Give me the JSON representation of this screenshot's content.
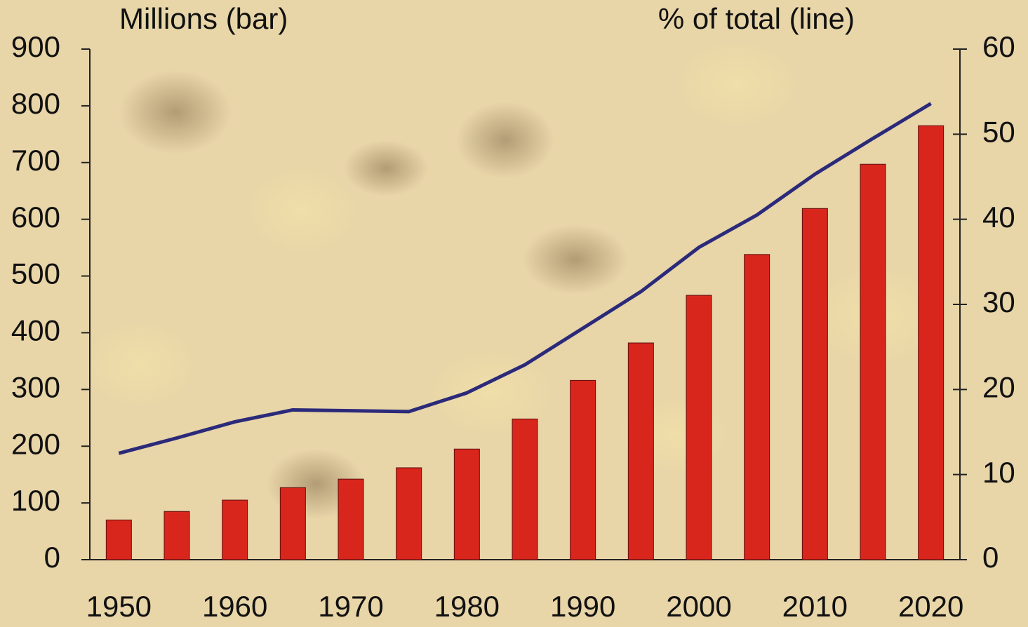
{
  "chart_data": {
    "type": "bar_line",
    "y_label": "Millions (bar)",
    "y2_label": "% of total (line)",
    "x": [
      1950,
      1955,
      1960,
      1965,
      1970,
      1975,
      1980,
      1985,
      1990,
      1995,
      2000,
      2005,
      2010,
      2015,
      2020
    ],
    "xlim": [
      1947.5,
      2022.5
    ],
    "xticks": [
      1950,
      1960,
      1970,
      1980,
      1990,
      2000,
      2010,
      2020
    ],
    "ylim": [
      0,
      900
    ],
    "yticks": [
      0,
      100,
      200,
      300,
      400,
      500,
      600,
      700,
      800,
      900
    ],
    "y2lim": [
      0,
      60
    ],
    "y2ticks": [
      0,
      10,
      20,
      30,
      40,
      50,
      60
    ],
    "series": [
      {
        "type": "bar",
        "color": "#d9261c",
        "values": [
          70,
          85,
          105,
          127,
          142,
          162,
          195,
          248,
          316,
          382,
          466,
          538,
          619,
          697,
          765
        ]
      },
      {
        "type": "line",
        "axis": "y2",
        "color": "#2b2a7a",
        "values": [
          12.5,
          14.3,
          16.2,
          17.6,
          17.5,
          17.4,
          19.6,
          22.9,
          27.2,
          31.5,
          36.7,
          40.5,
          45.3,
          49.5,
          53.6
        ]
      }
    ]
  }
}
